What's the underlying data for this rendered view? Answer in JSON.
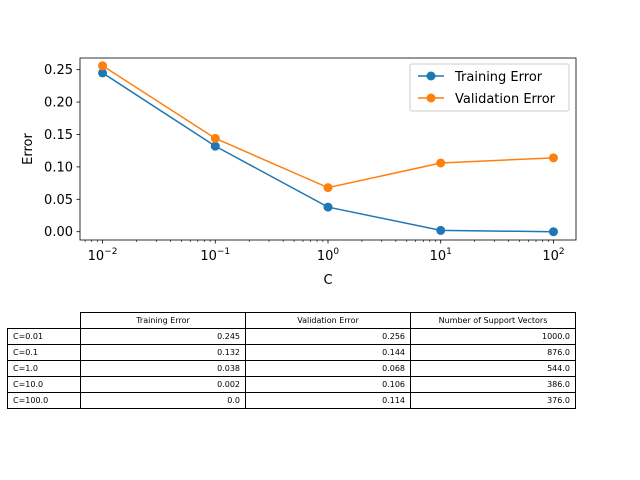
{
  "chart_data": {
    "type": "line",
    "title": "",
    "xlabel": "C",
    "ylabel": "Error",
    "xscale": "log",
    "x": [
      0.01,
      0.1,
      1,
      10,
      100
    ],
    "xticks": [
      {
        "value": 0.01,
        "base": "10",
        "exp": "−2"
      },
      {
        "value": 0.1,
        "base": "10",
        "exp": "−1"
      },
      {
        "value": 1,
        "base": "10",
        "exp": "0"
      },
      {
        "value": 10,
        "base": "10",
        "exp": "1"
      },
      {
        "value": 100,
        "base": "10",
        "exp": "2"
      }
    ],
    "yticks": [
      "0.00",
      "0.05",
      "0.10",
      "0.15",
      "0.20",
      "0.25"
    ],
    "ylim": [
      -0.0128,
      0.268
    ],
    "series": [
      {
        "name": "Training Error",
        "color": "#1f77b4",
        "values": [
          0.245,
          0.132,
          0.038,
          0.002,
          0.0
        ]
      },
      {
        "name": "Validation Error",
        "color": "#ff7f0e",
        "values": [
          0.256,
          0.144,
          0.068,
          0.106,
          0.114
        ]
      }
    ],
    "legend": "top-right",
    "grid": false
  },
  "table": {
    "headers": [
      "Training Error",
      "Validation Error",
      "Number of Support Vectors"
    ],
    "rows": [
      {
        "label": "C=0.01",
        "cells": [
          "0.245",
          "0.256",
          "1000.0"
        ]
      },
      {
        "label": "C=0.1",
        "cells": [
          "0.132",
          "0.144",
          "876.0"
        ]
      },
      {
        "label": "C=1.0",
        "cells": [
          "0.038",
          "0.068",
          "544.0"
        ]
      },
      {
        "label": "C=10.0",
        "cells": [
          "0.002",
          "0.106",
          "386.0"
        ]
      },
      {
        "label": "C=100.0",
        "cells": [
          "0.0",
          "0.114",
          "376.0"
        ]
      }
    ]
  }
}
